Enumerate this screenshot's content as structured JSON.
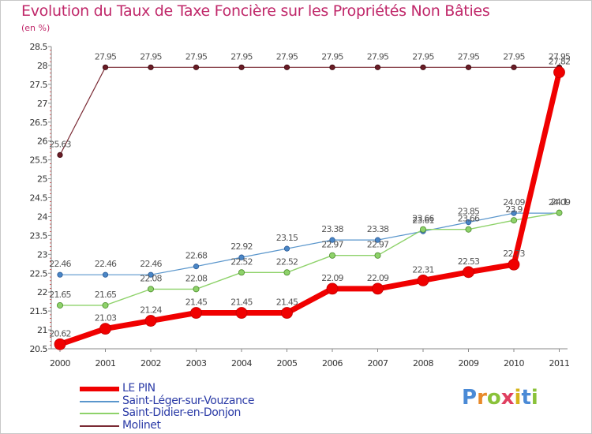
{
  "title": "Evolution du Taux de Taxe Foncière sur les Propriétés Non Bâties",
  "subtitle": "(en %)",
  "logo": {
    "text": "Proxiti",
    "letter_colors": [
      "#4a8ad6",
      "#e88a2a",
      "#8ac23a",
      "#e04060",
      "#d6b41a",
      "#4a8ad6",
      "#8ac23a"
    ]
  },
  "chart_data": {
    "type": "line",
    "title": "Evolution du Taux de Taxe Foncière sur les Propriétés Non Bâties",
    "ylabel": "(en %)",
    "xlabel": "",
    "x": [
      "2000",
      "2001",
      "2002",
      "2003",
      "2004",
      "2005",
      "2006",
      "2007",
      "2008",
      "2009",
      "2010",
      "2011"
    ],
    "ylim": [
      20.5,
      28.5
    ],
    "yticks": [
      "20.5",
      "21",
      "21.5",
      "22",
      "22.5",
      "23",
      "23.5",
      "24",
      "24.5",
      "25",
      "25.5",
      "26",
      "26.5",
      "27",
      "27.5",
      "28",
      "28.5"
    ],
    "grid": false,
    "series": [
      {
        "name": "Molinet",
        "color": "#7a2a34",
        "values": [
          25.63,
          27.95,
          27.95,
          27.95,
          27.95,
          27.95,
          27.95,
          27.95,
          27.95,
          27.95,
          27.95,
          27.95
        ],
        "labels": [
          "25.63",
          "27.95",
          "27.95",
          "27.95",
          "27.95",
          "27.95",
          "27.95",
          "27.95",
          "27.95",
          "27.95",
          "27.95",
          "27.95"
        ]
      },
      {
        "name": "Saint-Léger-sur-Vouzance",
        "color": "#5a96cc",
        "values": [
          22.46,
          22.46,
          22.46,
          22.68,
          22.92,
          23.15,
          23.38,
          23.38,
          23.61,
          23.85,
          24.09,
          24.09
        ],
        "labels": [
          "22.46",
          "22.46",
          "22.46",
          "22.68",
          "22.92",
          "23.15",
          "23.38",
          "23.38",
          "23.61",
          "23.85",
          "24.09",
          "24.09"
        ]
      },
      {
        "name": "Saint-Didier-en-Donjon",
        "color": "#8ed26a",
        "values": [
          21.65,
          21.65,
          22.08,
          22.08,
          22.52,
          22.52,
          22.97,
          22.97,
          23.66,
          23.66,
          23.9,
          24.1
        ],
        "labels": [
          "21.65",
          "21.65",
          "22.08",
          "22.08",
          "22.52",
          "22.52",
          "22.97",
          "22.97",
          "23.66",
          "23.66",
          "23.9",
          "24.1"
        ]
      },
      {
        "name": "LE PIN",
        "color": "#f00000",
        "values": [
          20.62,
          21.03,
          21.24,
          21.45,
          21.45,
          21.45,
          22.09,
          22.09,
          22.31,
          22.53,
          22.73,
          27.82
        ],
        "labels": [
          "20.62",
          "21.03",
          "21.24",
          "21.45",
          "21.45",
          "21.45",
          "22.09",
          "22.09",
          "22.31",
          "22.53",
          "22.73",
          "27.82"
        ]
      }
    ],
    "legend": {
      "position": "bottom-left",
      "entries": [
        "LE PIN",
        "Saint-Léger-sur-Vouzance",
        "Saint-Didier-en-Donjon",
        "Molinet"
      ]
    }
  }
}
